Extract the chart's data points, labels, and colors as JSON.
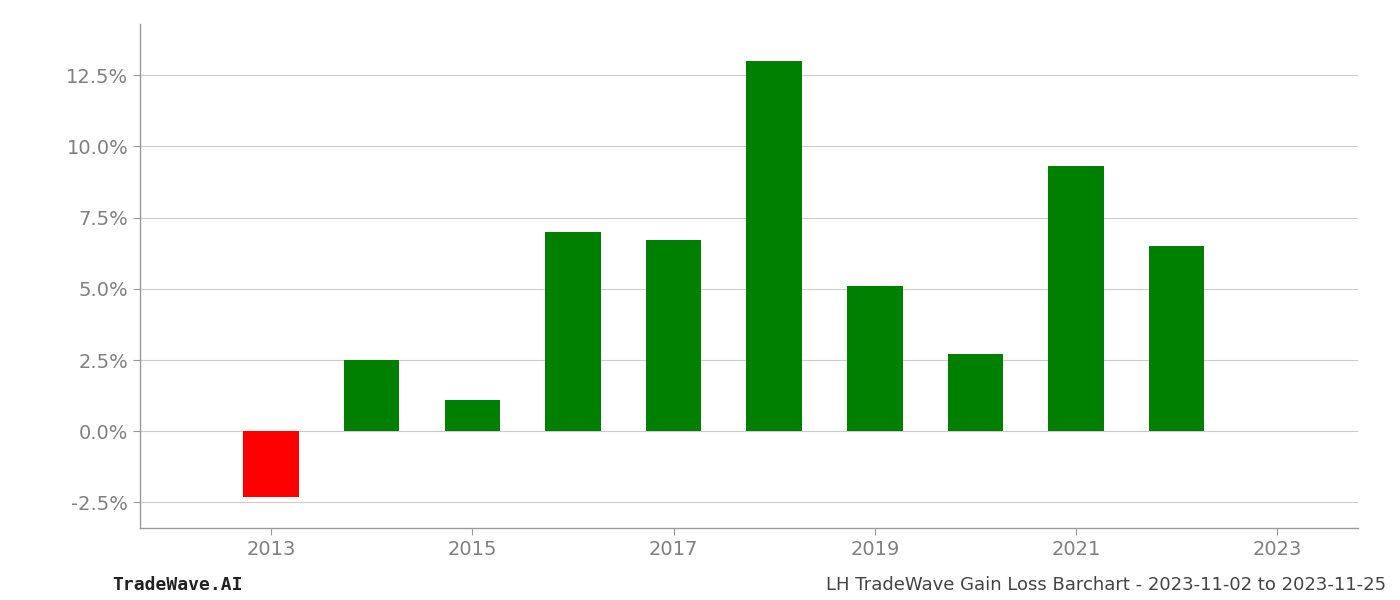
{
  "years": [
    2013,
    2014,
    2015,
    2016,
    2017,
    2018,
    2019,
    2020,
    2021,
    2022
  ],
  "values": [
    -0.023,
    0.025,
    0.011,
    0.07,
    0.067,
    0.13,
    0.051,
    0.027,
    0.093,
    0.065
  ],
  "colors": [
    "#ff0000",
    "#008000",
    "#008000",
    "#008000",
    "#008000",
    "#008000",
    "#008000",
    "#008000",
    "#008000",
    "#008000"
  ],
  "bar_width": 0.55,
  "ylim": [
    -0.034,
    0.143
  ],
  "yticks": [
    -0.025,
    0.0,
    0.025,
    0.05,
    0.075,
    0.1,
    0.125
  ],
  "background_color": "#ffffff",
  "grid_color": "#cccccc",
  "tick_label_color": "#808080",
  "footer_left": "TradeWave.AI",
  "footer_right": "LH TradeWave Gain Loss Barchart - 2023-11-02 to 2023-11-25",
  "footer_fontsize": 13,
  "spine_color": "#999999",
  "xtick_years": [
    2013,
    2015,
    2017,
    2019,
    2021,
    2023
  ],
  "xlim": [
    2011.7,
    2023.8
  ]
}
